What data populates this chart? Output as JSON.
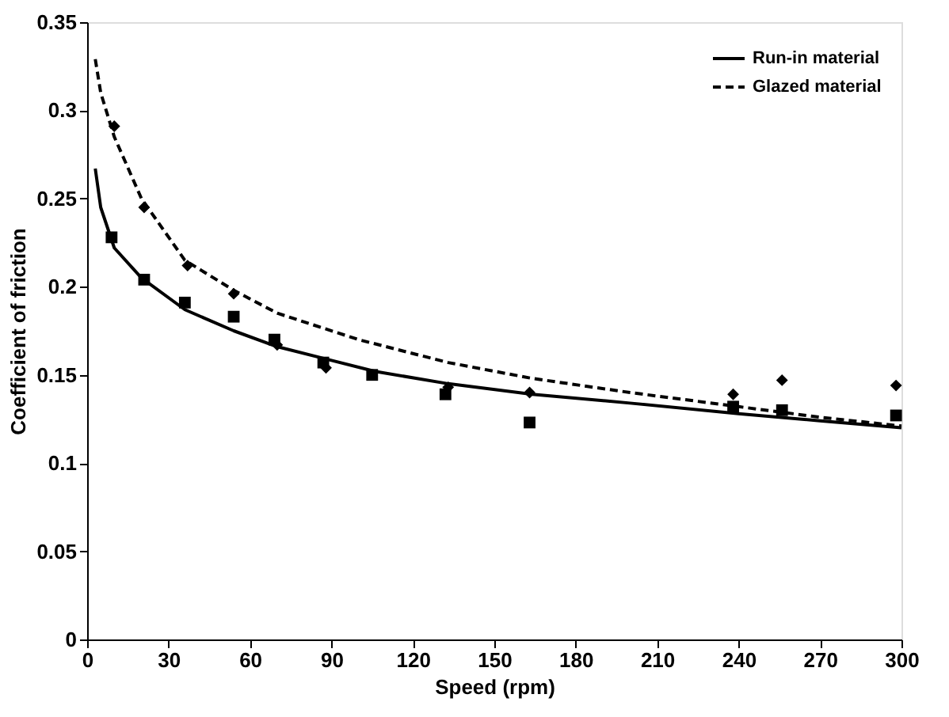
{
  "chart_data": {
    "type": "line",
    "xlabel": "Speed (rpm)",
    "ylabel": "Coefficient of friction",
    "xlim": [
      0,
      300
    ],
    "xticks": [
      0,
      30,
      60,
      90,
      120,
      150,
      180,
      210,
      240,
      270,
      300
    ],
    "ylim": [
      0,
      0.35
    ],
    "yticks": [
      0,
      0.05,
      0.1,
      0.15,
      0.2,
      0.25,
      0.3,
      0.35
    ],
    "grid": false,
    "legend": "top right",
    "series": [
      {
        "name": "Run-in material",
        "type": "line",
        "line_style": "solid",
        "marker": "none",
        "color": "#000000",
        "x": [
          3,
          5,
          10,
          20,
          36,
          54,
          70,
          88,
          106,
          133,
          164,
          200,
          240,
          270,
          300
        ],
        "values": [
          0.267,
          0.245,
          0.222,
          0.205,
          0.187,
          0.175,
          0.166,
          0.159,
          0.152,
          0.145,
          0.139,
          0.134,
          0.128,
          0.124,
          0.12
        ]
      },
      {
        "name": "Glazed material",
        "type": "line",
        "line_style": "dashed",
        "marker": "none",
        "color": "#000000",
        "x": [
          3,
          5,
          10,
          20,
          36,
          54,
          70,
          100,
          133,
          164,
          200,
          240,
          270,
          300
        ],
        "values": [
          0.329,
          0.31,
          0.285,
          0.25,
          0.215,
          0.198,
          0.185,
          0.17,
          0.157,
          0.148,
          0.14,
          0.132,
          0.126,
          0.121
        ]
      },
      {
        "type": "scatter",
        "marker": "square",
        "color": "#000000",
        "x": [
          9,
          21,
          36,
          54,
          69,
          87,
          105,
          132,
          163,
          238,
          256,
          298
        ],
        "values": [
          0.228,
          0.204,
          0.191,
          0.183,
          0.17,
          0.157,
          0.15,
          0.139,
          0.123,
          0.132,
          0.13,
          0.127
        ]
      },
      {
        "type": "scatter",
        "marker": "diamond",
        "color": "#000000",
        "x": [
          10,
          21,
          37,
          54,
          70,
          88,
          133,
          163,
          238,
          256,
          298
        ],
        "values": [
          0.291,
          0.245,
          0.212,
          0.196,
          0.167,
          0.154,
          0.143,
          0.14,
          0.139,
          0.147,
          0.144
        ]
      }
    ]
  }
}
